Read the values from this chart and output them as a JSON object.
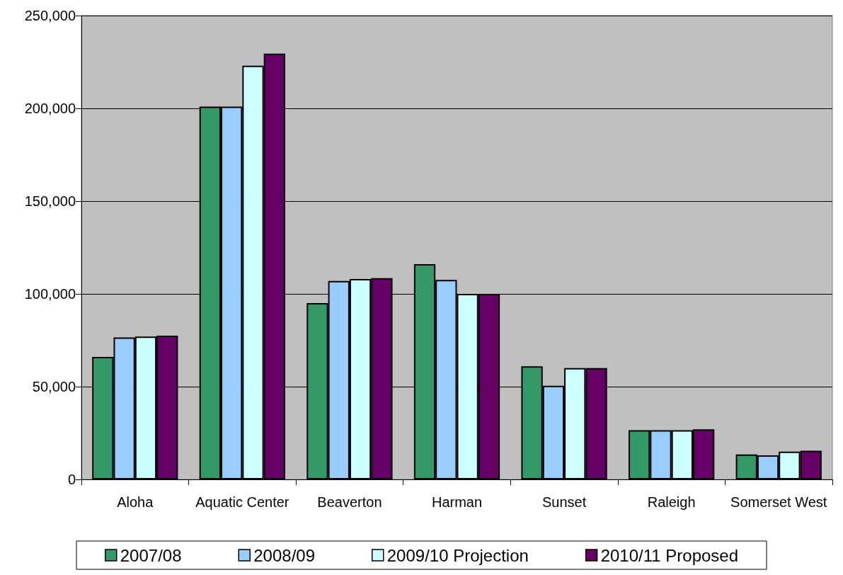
{
  "chart_data": {
    "type": "bar",
    "categories": [
      "Aloha",
      "Aquatic Center",
      "Beaverton",
      "Harman",
      "Sunset",
      "Raleigh",
      "Somerset West"
    ],
    "series": [
      {
        "name": "2007/08",
        "color": "#339966",
        "values": [
          66000,
          201000,
          95000,
          116000,
          61000,
          26500,
          13500
        ]
      },
      {
        "name": "2008/09",
        "color": "#99ccff",
        "values": [
          76500,
          201000,
          107000,
          107500,
          50500,
          26500,
          13000
        ]
      },
      {
        "name": "2009/10 Projection",
        "color": "#ccffff",
        "values": [
          77000,
          223000,
          108000,
          100000,
          60000,
          26500,
          15000
        ]
      },
      {
        "name": "2010/11 Proposed",
        "color": "#660066",
        "values": [
          77500,
          229500,
          108500,
          100000,
          60000,
          27000,
          15500
        ]
      }
    ],
    "ylim": [
      0,
      250000
    ],
    "yticks": [
      {
        "value": 0,
        "label": "0"
      },
      {
        "value": 50000,
        "label": "50,000"
      },
      {
        "value": 100000,
        "label": "100,000"
      },
      {
        "value": 150000,
        "label": "150,000"
      },
      {
        "value": 200000,
        "label": "200,000"
      },
      {
        "value": 250000,
        "label": "250,000"
      }
    ],
    "grid": "y",
    "legend": "bottom"
  }
}
